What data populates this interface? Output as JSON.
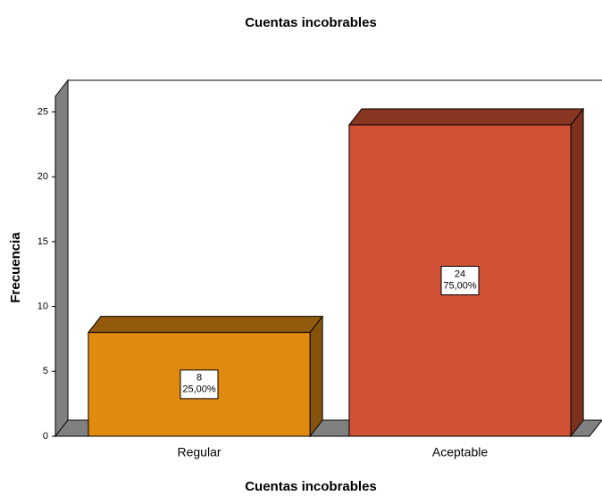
{
  "chart_data": {
    "type": "bar",
    "title": "Cuentas incobrables",
    "x_label": "Cuentas incobrables",
    "y_label": "Frecuencia",
    "categories": [
      "Regular",
      "Aceptable"
    ],
    "values": [
      8,
      24
    ],
    "percent_labels": [
      "25,00%",
      "75,00%"
    ],
    "colors": [
      "#e08a10",
      "#d15234"
    ],
    "ylim": [
      0,
      26.2
    ],
    "yticks": [
      0,
      5,
      10,
      15,
      20,
      25
    ],
    "grid": false
  }
}
